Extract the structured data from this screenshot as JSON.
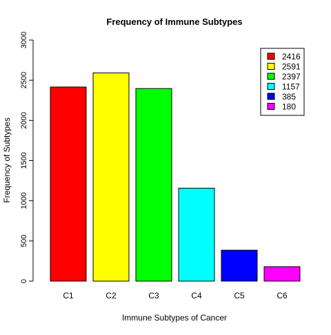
{
  "chart_data": {
    "type": "bar",
    "title": "Frequency of Immune Subtypes",
    "xlabel": "Immune Subtypes of Cancer",
    "ylabel": "Frequency of Subtypes",
    "categories": [
      "C1",
      "C2",
      "C3",
      "C4",
      "C5",
      "C6"
    ],
    "values": [
      2416,
      2591,
      2397,
      1157,
      385,
      180
    ],
    "colors": [
      "#FF0000",
      "#FFFF00",
      "#00FF00",
      "#00FFFF",
      "#0000FF",
      "#FF00FF"
    ],
    "ylim": [
      0,
      3000
    ],
    "yticks": [
      0,
      500,
      1000,
      1500,
      2000,
      2500,
      3000
    ],
    "grid": false,
    "legend": {
      "placement": "top-right",
      "entries": [
        "2416",
        "2591",
        "2397",
        "1157",
        "385",
        "180"
      ]
    }
  }
}
